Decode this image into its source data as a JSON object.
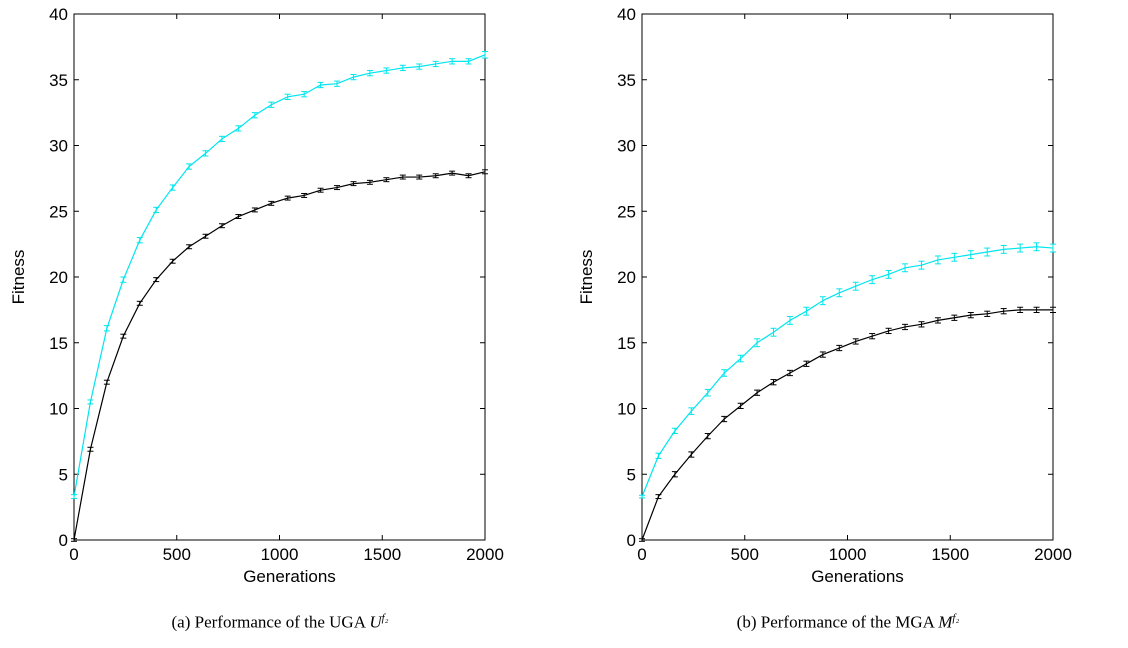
{
  "chart_data": [
    {
      "type": "line",
      "xlabel": "Generations",
      "ylabel": "Fitness",
      "xlim": [
        0,
        2000
      ],
      "ylim": [
        0,
        40
      ],
      "xticks": [
        "0",
        "500",
        "1000",
        "1500",
        "2000"
      ],
      "yticks": [
        "0",
        "5",
        "10",
        "15",
        "20",
        "25",
        "30",
        "35",
        "40"
      ],
      "grid": false,
      "caption": {
        "prefix": "(a) Performance of the UGA ",
        "symbol": "U",
        "superscript": "f₂"
      },
      "x": [
        0,
        80,
        160,
        240,
        320,
        400,
        480,
        560,
        640,
        720,
        800,
        880,
        960,
        1040,
        1120,
        1200,
        1280,
        1360,
        1440,
        1520,
        1600,
        1680,
        1760,
        1840,
        1920,
        2000
      ],
      "series": [
        {
          "color": "#00e5ee",
          "values": [
            3.3,
            10.5,
            16.1,
            19.8,
            22.8,
            25.1,
            26.8,
            28.4,
            29.4,
            30.5,
            31.3,
            32.3,
            33.1,
            33.7,
            33.9,
            34.6,
            34.7,
            35.2,
            35.5,
            35.7,
            35.9,
            36.0,
            36.2,
            36.4,
            36.4,
            36.9
          ],
          "errors": [
            0.15,
            0.15,
            0.2,
            0.2,
            0.2,
            0.2,
            0.2,
            0.2,
            0.2,
            0.2,
            0.2,
            0.2,
            0.2,
            0.2,
            0.2,
            0.2,
            0.2,
            0.2,
            0.2,
            0.2,
            0.2,
            0.2,
            0.2,
            0.2,
            0.2,
            0.25
          ]
        },
        {
          "color": "#000000",
          "values": [
            0,
            6.9,
            12.0,
            15.5,
            18.0,
            19.8,
            21.2,
            22.3,
            23.1,
            23.9,
            24.6,
            25.1,
            25.6,
            26.0,
            26.2,
            26.6,
            26.8,
            27.1,
            27.2,
            27.4,
            27.6,
            27.6,
            27.7,
            27.9,
            27.7,
            28.0
          ],
          "errors": [
            0.1,
            0.15,
            0.15,
            0.15,
            0.15,
            0.15,
            0.15,
            0.15,
            0.15,
            0.15,
            0.15,
            0.15,
            0.15,
            0.15,
            0.15,
            0.15,
            0.15,
            0.15,
            0.15,
            0.15,
            0.15,
            0.15,
            0.15,
            0.15,
            0.15,
            0.15
          ]
        }
      ]
    },
    {
      "type": "line",
      "xlabel": "Generations",
      "ylabel": "Fitness",
      "xlim": [
        0,
        2000
      ],
      "ylim": [
        0,
        40
      ],
      "xticks": [
        "0",
        "500",
        "1000",
        "1500",
        "2000"
      ],
      "yticks": [
        "0",
        "5",
        "10",
        "15",
        "20",
        "25",
        "30",
        "35",
        "40"
      ],
      "grid": false,
      "caption": {
        "prefix": "(b) Performance of the MGA ",
        "symbol": "M",
        "superscript": "f₂"
      },
      "x": [
        0,
        80,
        160,
        240,
        320,
        400,
        480,
        560,
        640,
        720,
        800,
        880,
        960,
        1040,
        1120,
        1200,
        1280,
        1360,
        1440,
        1520,
        1600,
        1680,
        1760,
        1840,
        1920,
        2000
      ],
      "series": [
        {
          "color": "#00e5ee",
          "values": [
            3.3,
            6.4,
            8.3,
            9.8,
            11.2,
            12.7,
            13.8,
            15.0,
            15.8,
            16.7,
            17.4,
            18.2,
            18.8,
            19.3,
            19.8,
            20.2,
            20.7,
            20.9,
            21.3,
            21.5,
            21.7,
            21.9,
            22.1,
            22.2,
            22.3,
            22.2
          ],
          "errors": [
            0.1,
            0.2,
            0.2,
            0.25,
            0.25,
            0.25,
            0.25,
            0.3,
            0.3,
            0.3,
            0.3,
            0.3,
            0.3,
            0.3,
            0.3,
            0.3,
            0.3,
            0.3,
            0.3,
            0.3,
            0.3,
            0.3,
            0.3,
            0.3,
            0.3,
            0.3
          ]
        },
        {
          "color": "#000000",
          "values": [
            0,
            3.3,
            5.0,
            6.5,
            7.9,
            9.2,
            10.2,
            11.2,
            12.0,
            12.7,
            13.4,
            14.1,
            14.6,
            15.1,
            15.5,
            15.9,
            16.2,
            16.4,
            16.7,
            16.9,
            17.1,
            17.2,
            17.4,
            17.5,
            17.5,
            17.5
          ],
          "errors": [
            0.1,
            0.15,
            0.2,
            0.2,
            0.2,
            0.2,
            0.2,
            0.2,
            0.2,
            0.2,
            0.2,
            0.2,
            0.2,
            0.2,
            0.2,
            0.2,
            0.2,
            0.2,
            0.2,
            0.2,
            0.2,
            0.2,
            0.2,
            0.2,
            0.2,
            0.2
          ]
        }
      ]
    }
  ]
}
